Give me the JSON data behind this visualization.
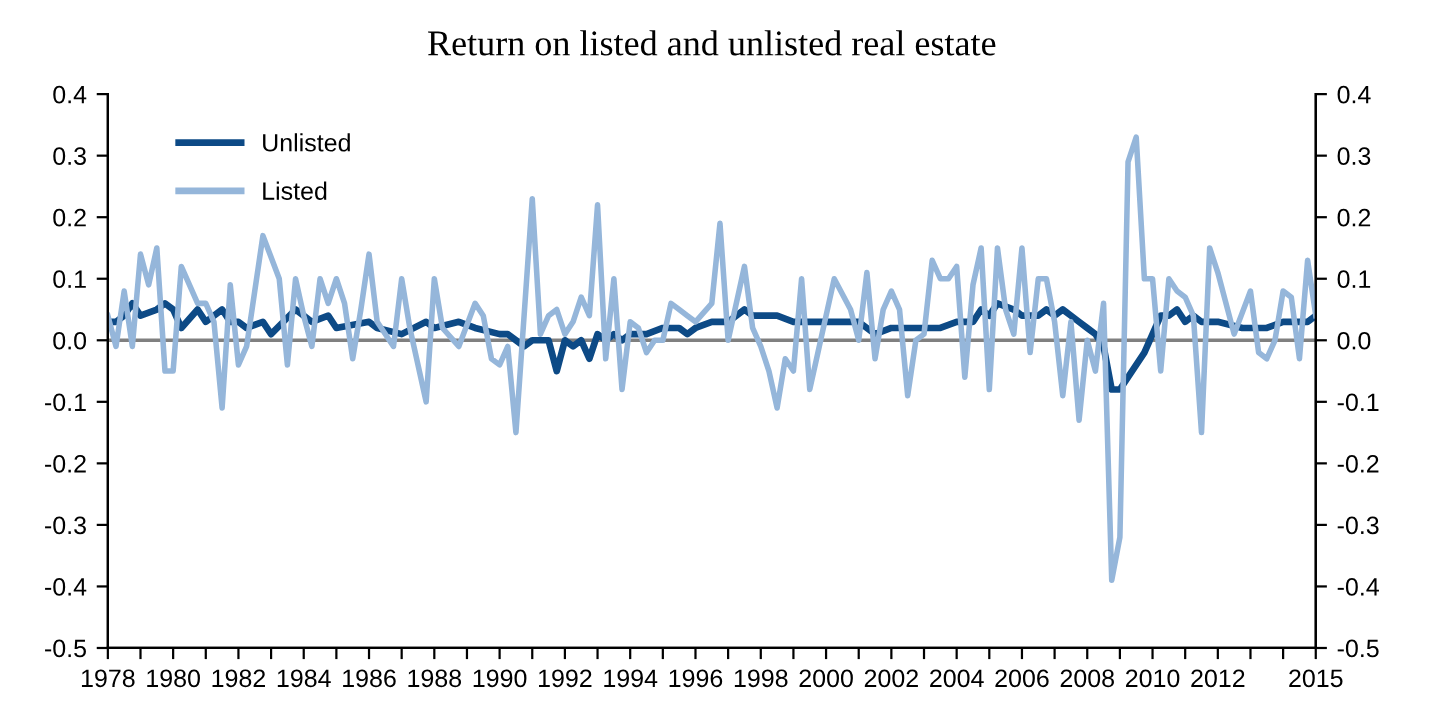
{
  "chart_data": {
    "type": "line",
    "title": "Return on listed and unlisted real estate",
    "xlim": [
      1978,
      2015
    ],
    "xticks": [
      1978,
      {
        "value": 1979,
        "label": null
      },
      1980,
      {
        "value": 1981,
        "label": null
      },
      1982,
      {
        "value": 1983,
        "label": null
      },
      1984,
      {
        "value": 1985,
        "label": null
      },
      1986,
      {
        "value": 1987,
        "label": null
      },
      1988,
      {
        "value": 1989,
        "label": null
      },
      1990,
      {
        "value": 1991,
        "label": null
      },
      1992,
      {
        "value": 1993,
        "label": null
      },
      1994,
      {
        "value": 1995,
        "label": null
      },
      1996,
      {
        "value": 1997,
        "label": null
      },
      1998,
      {
        "value": 1999,
        "label": null
      },
      2000,
      {
        "value": 2001,
        "label": null
      },
      2002,
      {
        "value": 2003,
        "label": null
      },
      2004,
      {
        "value": 2005,
        "label": null
      },
      2006,
      {
        "value": 2007,
        "label": null
      },
      2008,
      {
        "value": 2009,
        "label": null
      },
      2010,
      {
        "value": 2011,
        "label": null
      },
      2012,
      {
        "value": 2013,
        "label": null
      },
      {
        "value": 2014,
        "label": null
      },
      2015
    ],
    "ylim": [
      -0.5,
      0.4
    ],
    "yticks": [
      {
        "value": -0.5,
        "label": "-0.5"
      },
      {
        "value": -0.4,
        "label": "-0.4"
      },
      {
        "value": -0.3,
        "label": "-0.3"
      },
      {
        "value": -0.2,
        "label": "-0.2"
      },
      {
        "value": -0.1,
        "label": "-0.1"
      },
      {
        "value": 0,
        "label": "0.0"
      },
      {
        "value": 0.1,
        "label": "0.1"
      },
      {
        "value": 0.2,
        "label": "0.2"
      },
      {
        "value": 0.3,
        "label": "0.3"
      },
      {
        "value": 0.4,
        "label": "0.4"
      }
    ],
    "y2lim": [
      -0.5,
      0.4
    ],
    "y2ticks": [
      {
        "value": -0.5,
        "label": "-0.5"
      },
      {
        "value": -0.4,
        "label": "-0.4"
      },
      {
        "value": -0.3,
        "label": "-0.3"
      },
      {
        "value": -0.2,
        "label": "-0.2"
      },
      {
        "value": -0.1,
        "label": "-0.1"
      },
      {
        "value": 0,
        "label": "0.0"
      },
      {
        "value": 0.1,
        "label": "0.1"
      },
      {
        "value": 0.2,
        "label": "0.2"
      },
      {
        "value": 0.3,
        "label": "0.3"
      },
      {
        "value": 0.4,
        "label": "0.4"
      }
    ],
    "grid": false,
    "legend": "top left",
    "marker": "none",
    "line_style": "solid",
    "ref_lines": [
      {
        "axis": "y",
        "value": 0,
        "label": null,
        "color": "#808080"
      }
    ],
    "series": [
      {
        "name": "Listed",
        "color": "#95b6da",
        "x": [
          1978.0,
          1978.25,
          1978.5,
          1978.75,
          1979.0,
          1979.25,
          1979.5,
          1979.75,
          1980.0,
          1980.25,
          1980.5,
          1980.75,
          1981.0,
          1981.25,
          1981.5,
          1981.75,
          1982.0,
          1982.25,
          1982.75,
          1983.25,
          1983.5,
          1983.75,
          1984.0,
          1984.25,
          1984.5,
          1984.75,
          1985.0,
          1985.25,
          1985.5,
          1985.75,
          1986.0,
          1986.25,
          1986.75,
          1987.0,
          1987.25,
          1987.75,
          1988.0,
          1988.25,
          1988.75,
          1989.25,
          1989.5,
          1989.75,
          1990.0,
          1990.25,
          1990.5,
          1991.0,
          1991.25,
          1991.5,
          1991.75,
          1992.0,
          1992.25,
          1992.5,
          1992.75,
          1993.0,
          1993.25,
          1993.5,
          1993.75,
          1994.0,
          1994.25,
          1994.5,
          1994.75,
          1995.0,
          1995.25,
          1995.5,
          1995.75,
          1996.0,
          1996.5,
          1996.75,
          1997.0,
          1997.5,
          1997.75,
          1998.0,
          1998.25,
          1998.5,
          1998.75,
          1999.0,
          1999.25,
          1999.5,
          1999.75,
          2000.25,
          2000.75,
          2001.0,
          2001.25,
          2001.5,
          2001.75,
          2002.0,
          2002.25,
          2002.5,
          2002.75,
          2003.0,
          2003.25,
          2003.5,
          2003.75,
          2004.0,
          2004.25,
          2004.5,
          2004.75,
          2005.0,
          2005.25,
          2005.5,
          2005.75,
          2006.0,
          2006.25,
          2006.5,
          2006.75,
          2007.0,
          2007.25,
          2007.5,
          2007.75,
          2008.0,
          2008.25,
          2008.5,
          2008.75,
          2009.0,
          2009.25,
          2009.5,
          2009.75,
          2010.0,
          2010.25,
          2010.5,
          2010.75,
          2011.0,
          2011.25,
          2011.5,
          2011.75,
          2012.0,
          2012.5,
          2013.0,
          2013.25,
          2013.5,
          2013.75,
          2014.0,
          2014.25,
          2014.5,
          2014.75,
          2015.0
        ],
        "values": [
          0.04,
          -0.01,
          0.08,
          -0.01,
          0.14,
          0.09,
          0.15,
          -0.05,
          -0.05,
          0.12,
          0.09,
          0.06,
          0.06,
          0.03,
          -0.11,
          0.09,
          -0.04,
          -0.01,
          0.17,
          0.1,
          -0.04,
          0.1,
          0.04,
          -0.01,
          0.1,
          0.06,
          0.1,
          0.06,
          -0.03,
          0.05,
          0.14,
          0.03,
          -0.01,
          0.1,
          0.02,
          -0.1,
          0.1,
          0.02,
          -0.01,
          0.06,
          0.04,
          -0.03,
          -0.04,
          -0.01,
          -0.15,
          0.23,
          0.01,
          0.04,
          0.05,
          0.01,
          0.03,
          0.07,
          0.04,
          0.22,
          -0.03,
          0.1,
          -0.08,
          0.03,
          0.02,
          -0.02,
          0.0,
          0.0,
          0.06,
          0.05,
          0.04,
          0.03,
          0.06,
          0.19,
          0.0,
          0.12,
          0.02,
          -0.01,
          -0.05,
          -0.11,
          -0.03,
          -0.05,
          0.1,
          -0.08,
          -0.02,
          0.1,
          0.05,
          0.0,
          0.11,
          -0.03,
          0.05,
          0.08,
          0.05,
          -0.09,
          0.0,
          0.01,
          0.13,
          0.1,
          0.1,
          0.12,
          -0.06,
          0.09,
          0.15,
          -0.08,
          0.15,
          0.05,
          0.01,
          0.15,
          -0.02,
          0.1,
          0.1,
          0.03,
          -0.09,
          0.03,
          -0.13,
          0.0,
          -0.05,
          0.06,
          -0.39,
          -0.32,
          0.29,
          0.33,
          0.1,
          0.1,
          -0.05,
          0.1,
          0.08,
          0.07,
          0.04,
          -0.15,
          0.15,
          0.11,
          0.01,
          0.08,
          -0.02,
          -0.03,
          0.0,
          0.08,
          0.07,
          -0.03,
          0.13,
          0.04
        ]
      },
      {
        "name": "Unlisted",
        "color": "#0d4a86",
        "x": [
          1978.0,
          1978.25,
          1978.5,
          1978.75,
          1979.0,
          1979.5,
          1979.75,
          1980.0,
          1980.25,
          1980.75,
          1981.0,
          1981.5,
          1981.75,
          1982.0,
          1982.25,
          1982.75,
          1983.0,
          1983.75,
          1984.25,
          1984.75,
          1985.0,
          1986.0,
          1986.25,
          1987.0,
          1987.75,
          1988.0,
          1988.75,
          1989.25,
          1990.0,
          1990.25,
          1990.5,
          1990.75,
          1991.0,
          1991.5,
          1991.75,
          1992.0,
          1992.25,
          1992.5,
          1992.75,
          1993.0,
          1993.25,
          1993.5,
          1993.75,
          1994.0,
          1994.5,
          1995.0,
          1995.5,
          1995.75,
          1996.0,
          1996.5,
          1997.0,
          1997.5,
          1997.75,
          1998.5,
          1999.0,
          1999.75,
          2000.25,
          2001.0,
          2001.5,
          2002.0,
          2003.0,
          2003.5,
          2004.0,
          2004.5,
          2004.75,
          2005.0,
          2005.25,
          2005.75,
          2006.0,
          2006.5,
          2006.75,
          2007.0,
          2007.25,
          2007.5,
          2007.75,
          2008.0,
          2008.25,
          2008.5,
          2008.75,
          2009.0,
          2009.25,
          2009.5,
          2009.75,
          2010.0,
          2010.25,
          2010.5,
          2010.75,
          2011.0,
          2011.25,
          2011.5,
          2012.0,
          2012.75,
          2013.5,
          2014.0,
          2014.5,
          2014.75,
          2015.0
        ],
        "values": [
          0.03,
          0.03,
          0.04,
          0.06,
          0.04,
          0.05,
          0.06,
          0.05,
          0.02,
          0.05,
          0.03,
          0.05,
          0.03,
          0.03,
          0.02,
          0.03,
          0.01,
          0.05,
          0.03,
          0.04,
          0.02,
          0.03,
          0.02,
          0.01,
          0.03,
          0.02,
          0.03,
          0.02,
          0.01,
          0.01,
          0.0,
          -0.01,
          0.0,
          0.0,
          -0.05,
          0.0,
          -0.01,
          0.0,
          -0.03,
          0.01,
          0.0,
          0.01,
          0.0,
          0.01,
          0.01,
          0.02,
          0.02,
          0.01,
          0.02,
          0.03,
          0.03,
          0.05,
          0.04,
          0.04,
          0.03,
          0.03,
          0.03,
          0.03,
          0.01,
          0.02,
          0.02,
          0.02,
          0.03,
          0.03,
          0.05,
          0.04,
          0.06,
          0.05,
          0.04,
          0.04,
          0.05,
          0.04,
          0.05,
          0.04,
          0.03,
          0.02,
          0.01,
          -0.01,
          -0.08,
          -0.08,
          -0.06,
          -0.04,
          -0.02,
          0.01,
          0.04,
          0.04,
          0.05,
          0.03,
          0.04,
          0.03,
          0.03,
          0.02,
          0.02,
          0.03,
          0.03,
          0.03,
          0.04
        ]
      }
    ]
  }
}
